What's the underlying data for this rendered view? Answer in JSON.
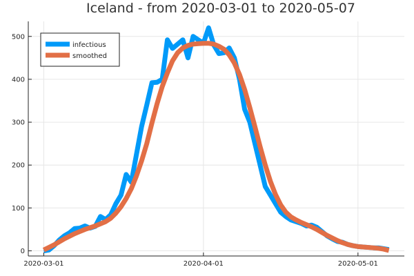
{
  "chart_data": {
    "type": "line",
    "title": "Iceland - from 2020-03-01 to 2020-05-07",
    "xlabel": "",
    "ylabel": "",
    "x_start": "2020-03-01",
    "x_end": "2020-05-07",
    "xlim": [
      "2020-02-27",
      "2020-05-10"
    ],
    "ylim": [
      -12,
      535
    ],
    "x_ticks": [
      "2020-03-01",
      "2020-04-01",
      "2020-05-01"
    ],
    "y_ticks": [
      0,
      100,
      200,
      300,
      400,
      500
    ],
    "grid": true,
    "legend_position": "top-left",
    "series": [
      {
        "name": "infectious",
        "color": "#009af9",
        "values": [
          0,
          2,
          12,
          25,
          35,
          42,
          52,
          53,
          58,
          53,
          57,
          80,
          73,
          84,
          110,
          130,
          178,
          160,
          225,
          290,
          340,
          392,
          393,
          400,
          492,
          472,
          482,
          492,
          450,
          500,
          492,
          484,
          520,
          480,
          460,
          462,
          473,
          450,
          400,
          330,
          300,
          250,
          200,
          150,
          130,
          110,
          90,
          80,
          72,
          68,
          64,
          58,
          60,
          55,
          45,
          35,
          28,
          22,
          20,
          15,
          12,
          10,
          9,
          8,
          7,
          7,
          5,
          3
        ]
      },
      {
        "name": "smoothed",
        "color": "#e26f46",
        "values": [
          2,
          8,
          14,
          21,
          28,
          34,
          40,
          45,
          50,
          54,
          58,
          63,
          68,
          76,
          88,
          103,
          122,
          145,
          175,
          210,
          250,
          298,
          343,
          383,
          415,
          443,
          462,
          473,
          479,
          482,
          483,
          484,
          484,
          482,
          477,
          470,
          457,
          438,
          411,
          376,
          334,
          289,
          243,
          200,
          162,
          131,
          107,
          90,
          79,
          72,
          66,
          61,
          56,
          50,
          43,
          36,
          30,
          24,
          19,
          15,
          12,
          10,
          9,
          8,
          7,
          6,
          4,
          1
        ]
      }
    ]
  },
  "legend": {
    "items": [
      {
        "label": "infectious",
        "color": "#009af9"
      },
      {
        "label": "smoothed",
        "color": "#e26f46"
      }
    ]
  }
}
